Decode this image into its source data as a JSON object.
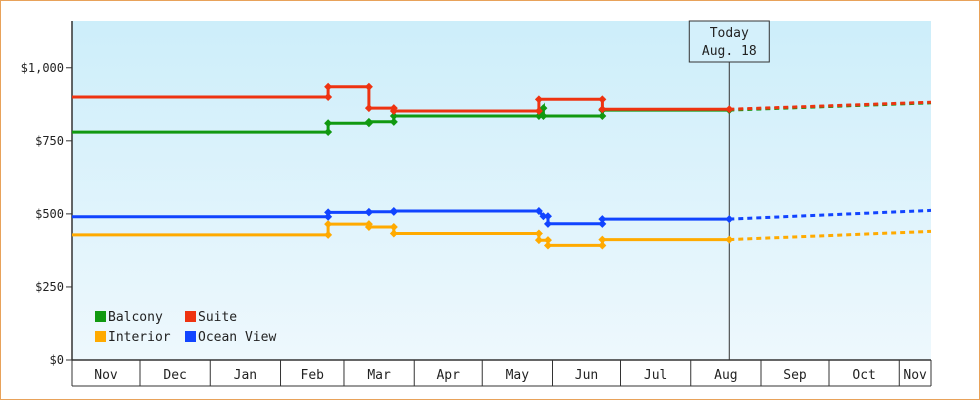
{
  "chart_data": {
    "type": "line",
    "step": true,
    "title": "",
    "xlabel": "",
    "ylabel": "",
    "ylim": [
      0,
      1160
    ],
    "y_ticks": [
      {
        "value": 0,
        "label": "$0"
      },
      {
        "value": 250,
        "label": "$250"
      },
      {
        "value": 500,
        "label": "$500"
      },
      {
        "value": 750,
        "label": "$750"
      },
      {
        "value": 1000,
        "label": "$1,000"
      }
    ],
    "x_range": [
      "2024-11-01",
      "2025-11-15"
    ],
    "months": [
      {
        "label": "Nov",
        "start": "2024-11-01",
        "end": "2024-11-30"
      },
      {
        "label": "Dec",
        "start": "2024-12-01",
        "end": "2024-12-31"
      },
      {
        "label": "Jan",
        "start": "2025-01-01",
        "end": "2025-01-31"
      },
      {
        "label": "Feb",
        "start": "2025-02-01",
        "end": "2025-02-28"
      },
      {
        "label": "Mar",
        "start": "2025-03-01",
        "end": "2025-03-31"
      },
      {
        "label": "Apr",
        "start": "2025-04-01",
        "end": "2025-04-30"
      },
      {
        "label": "May",
        "start": "2025-05-01",
        "end": "2025-05-31"
      },
      {
        "label": "Jun",
        "start": "2025-06-01",
        "end": "2025-06-30"
      },
      {
        "label": "Jul",
        "start": "2025-07-01",
        "end": "2025-07-31"
      },
      {
        "label": "Aug",
        "start": "2025-08-01",
        "end": "2025-08-31"
      },
      {
        "label": "Sep",
        "start": "2025-09-01",
        "end": "2025-09-30"
      },
      {
        "label": "Oct",
        "start": "2025-10-01",
        "end": "2025-10-31"
      },
      {
        "label": "Nov",
        "start": "2025-11-01",
        "end": "2025-11-15"
      }
    ],
    "today": {
      "date": "2025-08-18",
      "line1": "Today",
      "line2": "Aug. 18"
    },
    "grid": false,
    "background_gradient": [
      "#cdeefa",
      "#eef8fd"
    ],
    "legend_position": "bottom-left",
    "series": [
      {
        "name": "Balcony",
        "color": "#119911",
        "points": [
          {
            "x": "2024-11-01",
            "y": 780
          },
          {
            "x": "2025-02-22",
            "y": 780
          },
          {
            "x": "2025-02-22",
            "y": 810
          },
          {
            "x": "2025-03-12",
            "y": 810
          },
          {
            "x": "2025-03-12",
            "y": 815
          },
          {
            "x": "2025-03-23",
            "y": 815
          },
          {
            "x": "2025-03-23",
            "y": 835
          },
          {
            "x": "2025-05-26",
            "y": 835
          },
          {
            "x": "2025-05-28",
            "y": 862
          },
          {
            "x": "2025-05-28",
            "y": 835
          },
          {
            "x": "2025-06-23",
            "y": 835
          },
          {
            "x": "2025-06-23",
            "y": 855
          },
          {
            "x": "2025-08-18",
            "y": 855
          }
        ],
        "forecast": [
          {
            "x": "2025-08-18",
            "y": 855
          },
          {
            "x": "2025-11-15",
            "y": 880
          }
        ]
      },
      {
        "name": "Suite",
        "color": "#ee3311",
        "points": [
          {
            "x": "2024-11-01",
            "y": 900
          },
          {
            "x": "2025-02-22",
            "y": 900
          },
          {
            "x": "2025-02-22",
            "y": 935
          },
          {
            "x": "2025-03-12",
            "y": 935
          },
          {
            "x": "2025-03-12",
            "y": 862
          },
          {
            "x": "2025-03-23",
            "y": 862
          },
          {
            "x": "2025-03-23",
            "y": 852
          },
          {
            "x": "2025-05-26",
            "y": 852
          },
          {
            "x": "2025-05-26",
            "y": 892
          },
          {
            "x": "2025-06-23",
            "y": 892
          },
          {
            "x": "2025-06-23",
            "y": 858
          },
          {
            "x": "2025-08-18",
            "y": 858
          }
        ],
        "forecast": [
          {
            "x": "2025-08-18",
            "y": 858
          },
          {
            "x": "2025-11-15",
            "y": 882
          }
        ]
      },
      {
        "name": "Interior",
        "color": "#ffaa00",
        "points": [
          {
            "x": "2024-11-01",
            "y": 428
          },
          {
            "x": "2025-02-22",
            "y": 428
          },
          {
            "x": "2025-02-22",
            "y": 465
          },
          {
            "x": "2025-03-12",
            "y": 465
          },
          {
            "x": "2025-03-12",
            "y": 455
          },
          {
            "x": "2025-03-23",
            "y": 455
          },
          {
            "x": "2025-03-23",
            "y": 433
          },
          {
            "x": "2025-05-26",
            "y": 433
          },
          {
            "x": "2025-05-26",
            "y": 410
          },
          {
            "x": "2025-05-30",
            "y": 410
          },
          {
            "x": "2025-05-30",
            "y": 392
          },
          {
            "x": "2025-06-23",
            "y": 392
          },
          {
            "x": "2025-06-23",
            "y": 412
          },
          {
            "x": "2025-08-18",
            "y": 412
          }
        ],
        "forecast": [
          {
            "x": "2025-08-18",
            "y": 412
          },
          {
            "x": "2025-11-15",
            "y": 440
          }
        ]
      },
      {
        "name": "Ocean View",
        "color": "#1144ff",
        "points": [
          {
            "x": "2024-11-01",
            "y": 490
          },
          {
            "x": "2025-02-22",
            "y": 490
          },
          {
            "x": "2025-02-22",
            "y": 505
          },
          {
            "x": "2025-03-12",
            "y": 505
          },
          {
            "x": "2025-03-12",
            "y": 507
          },
          {
            "x": "2025-03-23",
            "y": 507
          },
          {
            "x": "2025-03-23",
            "y": 510
          },
          {
            "x": "2025-05-26",
            "y": 510
          },
          {
            "x": "2025-05-28",
            "y": 492
          },
          {
            "x": "2025-05-30",
            "y": 492
          },
          {
            "x": "2025-05-30",
            "y": 466
          },
          {
            "x": "2025-06-23",
            "y": 466
          },
          {
            "x": "2025-06-23",
            "y": 482
          },
          {
            "x": "2025-08-18",
            "y": 482
          }
        ],
        "forecast": [
          {
            "x": "2025-08-18",
            "y": 482
          },
          {
            "x": "2025-11-15",
            "y": 512
          }
        ]
      }
    ],
    "legend": [
      {
        "name": "Balcony",
        "color": "#119911"
      },
      {
        "name": "Suite",
        "color": "#ee3311"
      },
      {
        "name": "Interior",
        "color": "#ffaa00"
      },
      {
        "name": "Ocean View",
        "color": "#1144ff"
      }
    ]
  }
}
